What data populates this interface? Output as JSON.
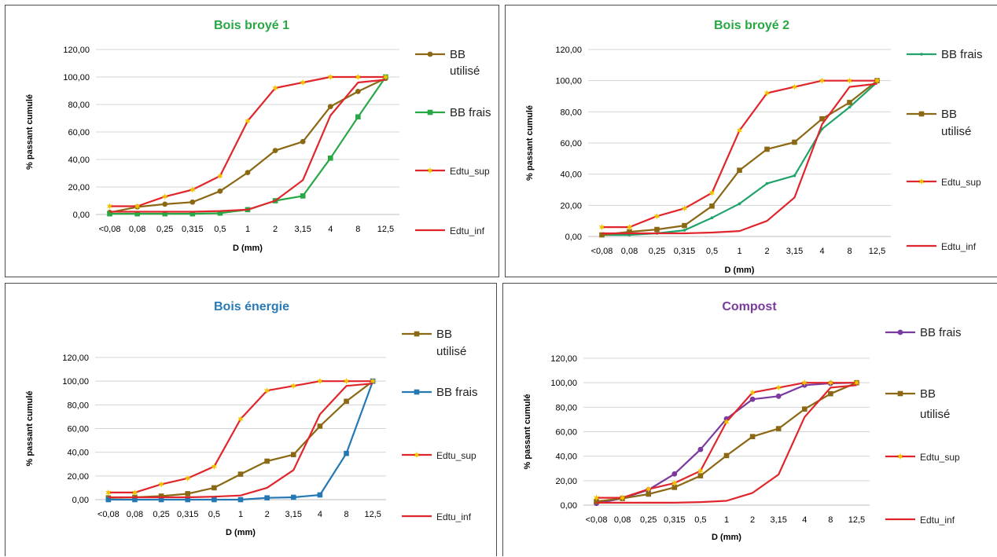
{
  "chart_data": [
    {
      "type": "line",
      "title": "Bois broyé 1",
      "title_color": "#27a845",
      "xlabel": "D (mm)",
      "ylabel": "% passant cumulé",
      "categories": [
        "<0,08",
        "0,08",
        "0,25",
        "0,315",
        "0,5",
        "1",
        "2",
        "3,15",
        "4",
        "8",
        "12,5"
      ],
      "ylim": [
        0,
        120
      ],
      "yticks": [
        "0,00",
        "20,00",
        "40,00",
        "60,00",
        "80,00",
        "100,00",
        "120,00"
      ],
      "grid": true,
      "legend_position": "right",
      "series": [
        {
          "name": "BB utilisé",
          "color": "#8b6914",
          "marker": "circle",
          "values": [
            1.5,
            5.5,
            7.5,
            9,
            17,
            30.5,
            46.5,
            53,
            78.5,
            89.5,
            99
          ]
        },
        {
          "name": "BB frais",
          "color": "#27a845",
          "marker": "square",
          "values": [
            0.5,
            0.5,
            0.5,
            0.5,
            1,
            3.5,
            10,
            13.5,
            41,
            71,
            100
          ]
        },
        {
          "name": "Edtu_sup",
          "color": "#e0262c",
          "marker": "star",
          "values": [
            6,
            6,
            13,
            18,
            28,
            68,
            92,
            96,
            100,
            100,
            100
          ]
        },
        {
          "name": "Edtu_inf",
          "color": "#e0262c",
          "marker": "none",
          "values": [
            2,
            2,
            2,
            2,
            2.5,
            3.5,
            10,
            25,
            72,
            96,
            98
          ]
        }
      ]
    },
    {
      "type": "line",
      "title": "Bois broyé 2",
      "title_color": "#27a845",
      "xlabel": "D (mm)",
      "ylabel": "% passant cumulé",
      "categories": [
        "<0,08",
        "0,08",
        "0,25",
        "0,315",
        "0,5",
        "1",
        "2",
        "3,15",
        "4",
        "8",
        "12,5"
      ],
      "ylim": [
        0,
        120
      ],
      "yticks": [
        "0,00",
        "20,00",
        "40,00",
        "60,00",
        "80,00",
        "100,00",
        "120,00"
      ],
      "grid": true,
      "legend_position": "right",
      "series": [
        {
          "name": "BB frais",
          "color": "#1fa36a",
          "marker": "dot",
          "values": [
            1,
            1,
            2,
            4,
            12,
            21,
            34,
            39,
            69,
            83,
            99
          ]
        },
        {
          "name": "BB utilisé",
          "color": "#8b6914",
          "marker": "square",
          "values": [
            1,
            3,
            4.5,
            7,
            19.5,
            42.5,
            56,
            60.5,
            75.5,
            86,
            100
          ]
        },
        {
          "name": "Edtu_sup",
          "color": "#e0262c",
          "marker": "star",
          "values": [
            6,
            6,
            13,
            18,
            28,
            68,
            92,
            96,
            100,
            100,
            100
          ]
        },
        {
          "name": "Edtu_inf",
          "color": "#e0262c",
          "marker": "none",
          "values": [
            2,
            2,
            2,
            2,
            2.5,
            3.5,
            10,
            25,
            72,
            96,
            98
          ]
        }
      ]
    },
    {
      "type": "line",
      "title": "Bois énergie",
      "title_color": "#2a7ab5",
      "xlabel": "D (mm)",
      "ylabel": "% passant cumulé",
      "categories": [
        "<0,08",
        "0,08",
        "0,25",
        "0,315",
        "0,5",
        "1",
        "2",
        "3,15",
        "4",
        "8",
        "12,5"
      ],
      "ylim": [
        0,
        120
      ],
      "yticks": [
        "0,00",
        "20,00",
        "40,00",
        "60,00",
        "80,00",
        "100,00",
        "120,00"
      ],
      "grid": true,
      "legend_position": "right",
      "series": [
        {
          "name": "BB utilisé",
          "color": "#8b6914",
          "marker": "square",
          "values": [
            1.5,
            2,
            3,
            5,
            10,
            21.5,
            32.5,
            38,
            62,
            83,
            100
          ]
        },
        {
          "name": "BB frais",
          "color": "#2479b5",
          "marker": "square",
          "values": [
            0,
            0,
            0,
            0,
            0,
            0,
            1.5,
            2,
            4,
            39,
            100
          ]
        },
        {
          "name": "Edtu_sup",
          "color": "#e0262c",
          "marker": "star",
          "values": [
            6,
            6,
            13,
            18,
            28,
            68,
            92,
            96,
            100,
            100,
            100
          ]
        },
        {
          "name": "Edtu_inf",
          "color": "#e0262c",
          "marker": "none",
          "values": [
            2,
            2,
            2,
            2,
            2.5,
            3.5,
            10,
            25,
            72,
            96,
            98
          ]
        }
      ]
    },
    {
      "type": "line",
      "title": "Compost",
      "title_color": "#7a3a9e",
      "xlabel": "D (mm)",
      "ylabel": "% passant cumulé",
      "categories": [
        "<0,08",
        "0,08",
        "0,25",
        "0,315",
        "0,5",
        "1",
        "2",
        "3,15",
        "4",
        "8",
        "12,5"
      ],
      "ylim": [
        0,
        120
      ],
      "yticks": [
        "0,00",
        "20,00",
        "40,00",
        "60,00",
        "80,00",
        "100,00",
        "120,00"
      ],
      "grid": true,
      "legend_position": "right",
      "series": [
        {
          "name": "BB frais",
          "color": "#7a3a9e",
          "marker": "circle",
          "values": [
            1.5,
            5.5,
            12.5,
            25.5,
            45.5,
            70.5,
            86.5,
            89,
            98,
            99.5,
            100
          ]
        },
        {
          "name": "BB utilisé",
          "color": "#8b6914",
          "marker": "square",
          "values": [
            3,
            5.5,
            9,
            14.5,
            24,
            40.5,
            56,
            62.5,
            78.5,
            91,
            100
          ]
        },
        {
          "name": "Edtu_sup",
          "color": "#e0262c",
          "marker": "star",
          "values": [
            6,
            6,
            13,
            18,
            28,
            68,
            92,
            96,
            100,
            100,
            100
          ]
        },
        {
          "name": "Edtu_inf",
          "color": "#e0262c",
          "marker": "none",
          "values": [
            2,
            2,
            2,
            2,
            2.5,
            3.5,
            10,
            25,
            72,
            96,
            98
          ]
        }
      ]
    }
  ]
}
